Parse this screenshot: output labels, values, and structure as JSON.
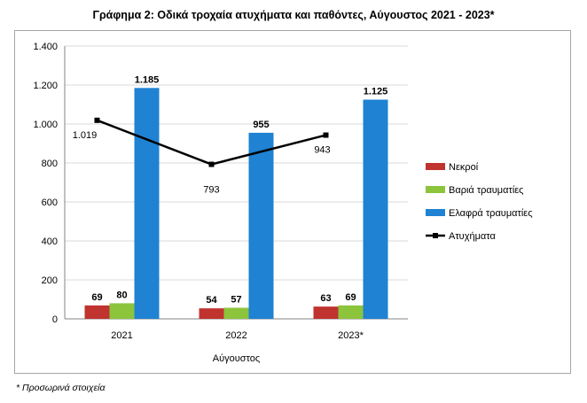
{
  "chart_data": {
    "type": "bar",
    "title": "Γράφημα 2: Οδικά τροχαία ατυχήματα και παθόντες, Αύγουστος 2021 - 2023*",
    "xlabel": "Αύγουστος",
    "ylabel": "",
    "categories": [
      "2021",
      "2022",
      "2023*"
    ],
    "ylim": [
      0,
      1400
    ],
    "yticks": [
      0,
      200,
      400,
      600,
      800,
      1000,
      1200,
      1400
    ],
    "ytick_labels": [
      "0",
      "200",
      "400",
      "600",
      "800",
      "1.000",
      "1.200",
      "1.400"
    ],
    "grid": true,
    "legend_position": "right",
    "series": [
      {
        "name": "Νεκροί",
        "type": "bar",
        "color": "#c0332f",
        "values": [
          69,
          54,
          63
        ],
        "labels": [
          "69",
          "54",
          "63"
        ]
      },
      {
        "name": "Βαριά τραυματίες",
        "type": "bar",
        "color": "#8cc43c",
        "values": [
          80,
          57,
          69
        ],
        "labels": [
          "80",
          "57",
          "69"
        ]
      },
      {
        "name": "Ελαφρά τραυματίες",
        "type": "bar",
        "color": "#1f82d2",
        "values": [
          1185,
          955,
          1125
        ],
        "labels": [
          "1.185",
          "955",
          "1.125"
        ]
      },
      {
        "name": "Ατυχήματα",
        "type": "line",
        "color": "#000000",
        "values": [
          1019,
          793,
          943
        ],
        "labels": [
          "1.019",
          "793",
          "943"
        ]
      }
    ]
  },
  "footnote": "* Προσωρινά στοιχεία"
}
